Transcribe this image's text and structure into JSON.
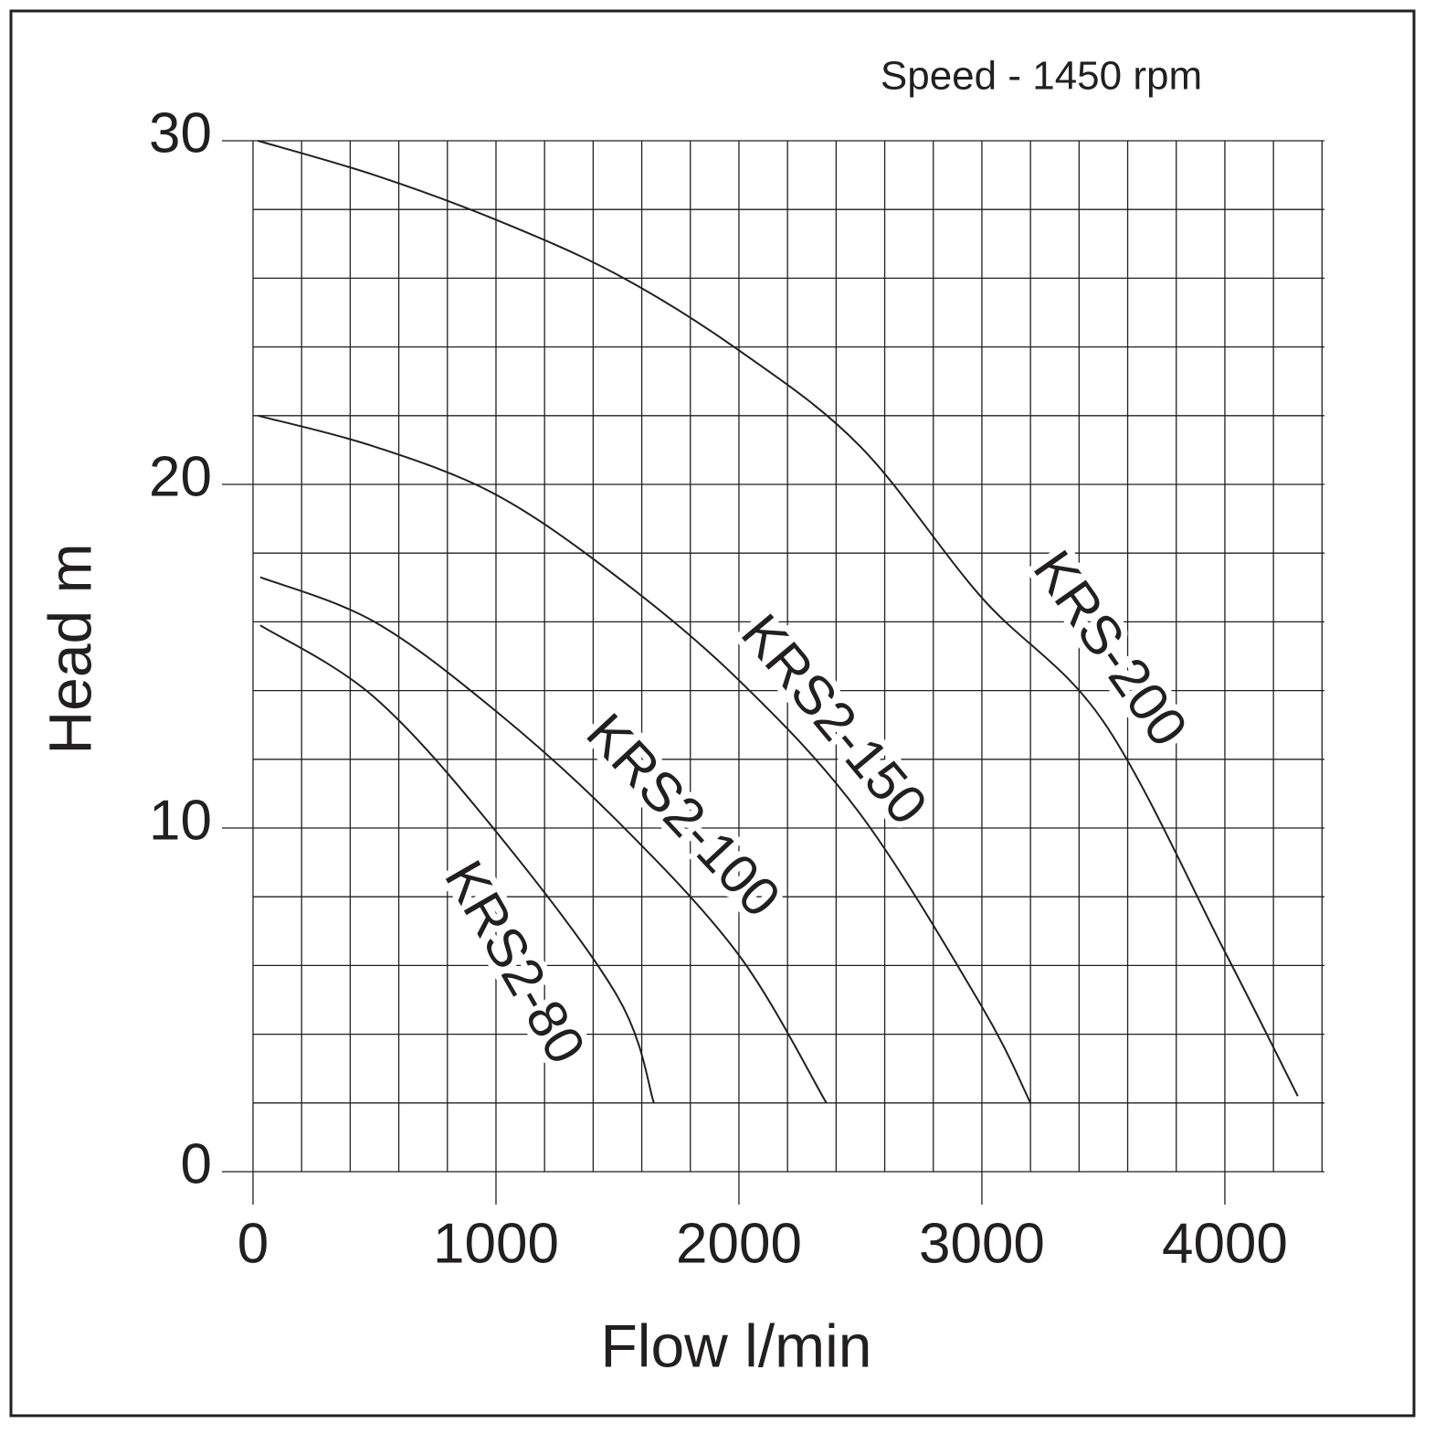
{
  "chart_data": {
    "type": "line",
    "title": "Speed - 1450 rpm",
    "x_label": "Flow l/min",
    "y_label": "Head m",
    "series": [
      {
        "name": "KRS-200",
        "color": "#231f20",
        "x": [
          20,
          500,
          1000,
          1500,
          2000,
          2500,
          3000,
          3500,
          4000,
          4300
        ],
        "values": [
          30,
          29.0,
          27.7,
          26.1,
          23.9,
          21.1,
          16.7,
          13.1,
          6.4,
          2.2
        ]
      },
      {
        "name": "KRS2-150",
        "color": "#231f20",
        "x": [
          20,
          500,
          1000,
          1500,
          2000,
          2500,
          3000,
          3200
        ],
        "values": [
          22.0,
          21.1,
          19.7,
          17.3,
          14.3,
          10.4,
          4.8,
          2.0
        ]
      },
      {
        "name": "KRS2-100",
        "color": "#231f20",
        "x": [
          30,
          500,
          1000,
          1500,
          2000,
          2360
        ],
        "values": [
          17.3,
          16.0,
          13.4,
          10.2,
          6.3,
          2.0
        ]
      },
      {
        "name": "KRS2-80",
        "color": "#231f20",
        "x": [
          30,
          500,
          1000,
          1500,
          1650
        ],
        "values": [
          15.9,
          13.8,
          9.9,
          5.1,
          2.0
        ]
      }
    ],
    "xlim": [
      0,
      4410
    ],
    "ylim": [
      0,
      30
    ],
    "xticks": [
      0,
      1000,
      2000,
      3000,
      4000
    ],
    "yticks": [
      0,
      10,
      20,
      30
    ],
    "grid": true
  }
}
